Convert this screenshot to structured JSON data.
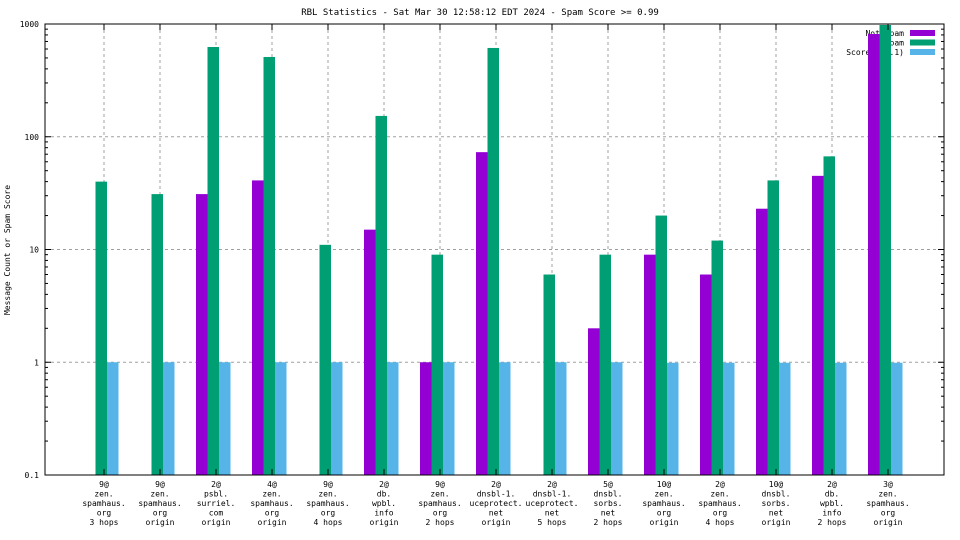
{
  "chart_data": {
    "type": "bar",
    "title": "RBL Statistics - Sat Mar 30 12:58:12 EDT 2024 - Spam Score >= 0.99",
    "xlabel": "",
    "ylabel": "Message Count or Spam Score",
    "yscale": "log",
    "ylim": [
      0.1,
      1000
    ],
    "yticks": [
      "0.1",
      "1",
      "10",
      "100",
      "1000"
    ],
    "grid": true,
    "legend_position": "top-right",
    "categories": [
      [
        "9@",
        "zen.",
        "spamhaus.",
        "org",
        "3 hops"
      ],
      [
        "9@",
        "zen.",
        "spamhaus.",
        "org",
        "origin"
      ],
      [
        "2@",
        "psbl.",
        "surriel.",
        "com",
        "origin"
      ],
      [
        "4@",
        "zen.",
        "spamhaus.",
        "org",
        "origin"
      ],
      [
        "9@",
        "zen.",
        "spamhaus.",
        "org",
        "4 hops"
      ],
      [
        "2@",
        "db.",
        "wpbl.",
        "info",
        "origin"
      ],
      [
        "9@",
        "zen.",
        "spamhaus.",
        "org",
        "2 hops"
      ],
      [
        "2@",
        "dnsbl-1.",
        "uceprotect.",
        "net",
        "origin"
      ],
      [
        "2@",
        "dnsbl-1.",
        "uceprotect.",
        "net",
        "5 hops"
      ],
      [
        "5@",
        "dnsbl.",
        "sorbs.",
        "net",
        "2 hops"
      ],
      [
        "10@",
        "zen.",
        "spamhaus.",
        "org",
        "origin"
      ],
      [
        "2@",
        "zen.",
        "spamhaus.",
        "org",
        "4 hops"
      ],
      [
        "10@",
        "dnsbl.",
        "sorbs.",
        "net",
        "origin"
      ],
      [
        "2@",
        "db.",
        "wpbl.",
        "info",
        "2 hops"
      ],
      [
        "3@",
        "zen.",
        "spamhaus.",
        "org",
        "origin"
      ]
    ],
    "series": [
      {
        "name": "Not Spam",
        "color": "#9400d3",
        "values": [
          0,
          0,
          31,
          41,
          0,
          15,
          1,
          73,
          0,
          2,
          9,
          6,
          23,
          45,
          815
        ]
      },
      {
        "name": "Spam",
        "color": "#009e73",
        "values": [
          40,
          31,
          625,
          510,
          11,
          153,
          9,
          613,
          6,
          9,
          20,
          12,
          41,
          67,
          980
        ]
      },
      {
        "name": "Score (0..1)",
        "color": "#56b4e9",
        "values": [
          1,
          1,
          1,
          1,
          1,
          1,
          1,
          1,
          1,
          1,
          0.99,
          0.99,
          0.99,
          0.99,
          0.99
        ]
      }
    ]
  }
}
